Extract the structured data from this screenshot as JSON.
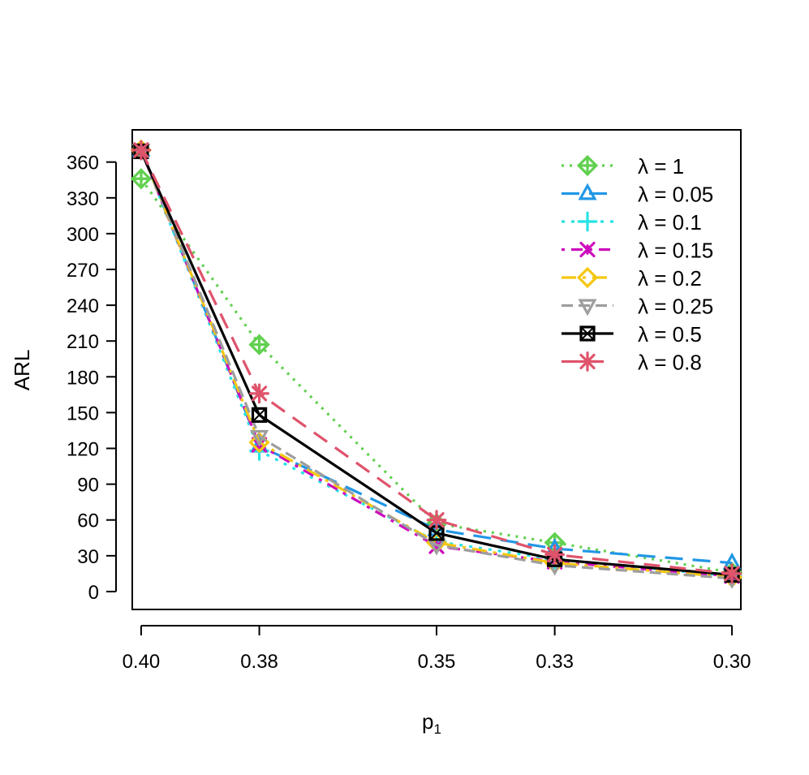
{
  "chart_data": {
    "type": "line",
    "xlabel": "p",
    "xlabel_subscript": "1",
    "ylabel": "ARL",
    "x_tick_labels": [
      "0.40",
      "0.38",
      "0.35",
      "0.33",
      "0.30"
    ],
    "x_positions": [
      0.4,
      0.38,
      0.35,
      0.33,
      0.3
    ],
    "y_ticks": [
      0,
      30,
      60,
      90,
      120,
      150,
      180,
      210,
      240,
      270,
      300,
      330,
      360
    ],
    "y_tick_labels": [
      "0",
      "30",
      "60",
      "90",
      "120",
      "150",
      "180",
      "210",
      "240",
      "270",
      "300",
      "330",
      "360"
    ],
    "xlim": [
      0.4015,
      0.2985
    ],
    "ylim": [
      -15,
      387
    ],
    "legend_position": "top-right",
    "legend_prefix": "λ = ",
    "series": [
      {
        "name": "1",
        "color": "#61D04F",
        "dash": "3,7",
        "marker": "diamond-plus",
        "values": [
          346,
          207,
          57,
          41,
          16
        ]
      },
      {
        "name": "0.05",
        "color": "#2297E6",
        "dash": "22,12",
        "marker": "triangle-up",
        "values": [
          370,
          122,
          52,
          36,
          24
        ]
      },
      {
        "name": "0.1",
        "color": "#28E2E5",
        "dash": "4,8",
        "marker": "plus",
        "values": [
          370,
          118,
          42,
          27,
          13
        ]
      },
      {
        "name": "0.15",
        "color": "#CD0BBC",
        "dash": "4,8,14,8",
        "marker": "asterisk-x",
        "values": [
          370,
          123,
          38,
          25,
          13
        ]
      },
      {
        "name": "0.2",
        "color": "#F5C710",
        "dash": "18,8,4,8",
        "marker": "diamond",
        "values": [
          370,
          125,
          41,
          24,
          12
        ]
      },
      {
        "name": "0.25",
        "color": "#9E9E9E",
        "dash": "14,7",
        "marker": "triangle-down",
        "values": [
          370,
          130,
          39,
          22,
          11
        ]
      },
      {
        "name": "0.5",
        "color": "#000000",
        "dash": "",
        "marker": "square-x",
        "values": [
          369,
          148,
          49,
          27,
          14
        ]
      },
      {
        "name": "0.8",
        "color": "#DF536B",
        "dash": "20,12",
        "marker": "asterisk",
        "values": [
          370,
          166,
          60,
          31,
          15
        ]
      }
    ]
  }
}
